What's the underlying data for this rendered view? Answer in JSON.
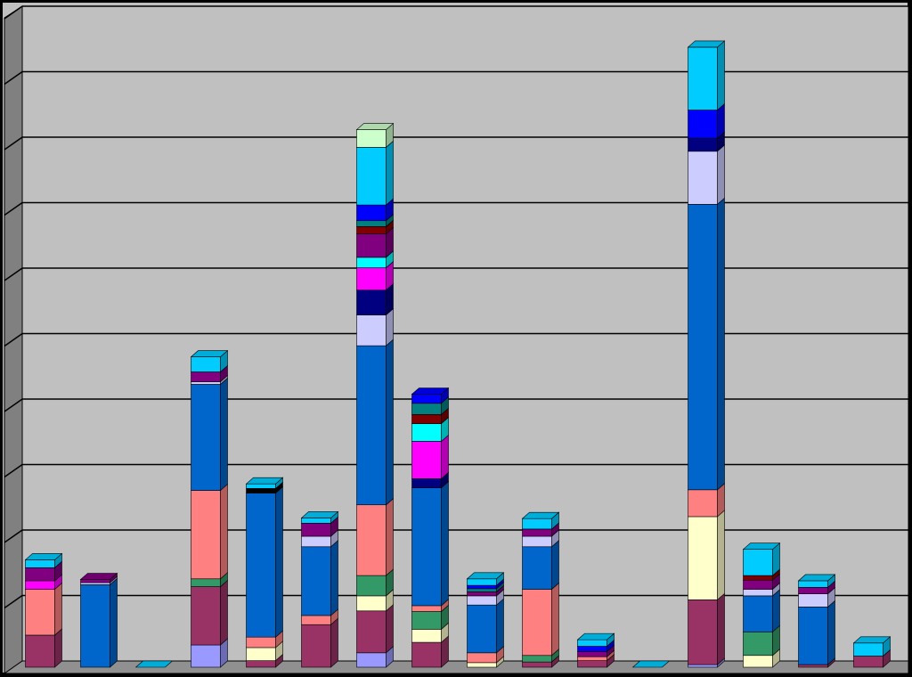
{
  "chart_data": {
    "type": "stacked-bar-3d",
    "categories": [
      null,
      null,
      null,
      null,
      null,
      null,
      null,
      null,
      null,
      null,
      null,
      null,
      null,
      null,
      null,
      null
    ],
    "ylim": [
      0,
      10
    ],
    "yticks": [
      0,
      1,
      2,
      3,
      4,
      5,
      6,
      7,
      8,
      9,
      10
    ],
    "grid": true,
    "series": [
      {
        "color": "#9999ff",
        "values": [
          0,
          0,
          0,
          0.34,
          0,
          0,
          0.22,
          0,
          0,
          0,
          0,
          0,
          0.04,
          0,
          0,
          0
        ]
      },
      {
        "color": "#993366",
        "values": [
          0.49,
          0,
          0,
          0.89,
          0.1,
          0.65,
          0.64,
          0.38,
          0,
          0.08,
          0.1,
          0,
          0.99,
          0,
          0.04,
          0.17
        ]
      },
      {
        "color": "#ffffcc",
        "values": [
          0,
          0,
          0,
          0,
          0.2,
          0,
          0.23,
          0.2,
          0.07,
          0,
          0,
          0,
          1.27,
          0.18,
          0,
          0
        ]
      },
      {
        "color": "#339966",
        "values": [
          0,
          0,
          0,
          0.12,
          0,
          0,
          0.31,
          0.27,
          0,
          0.1,
          0,
          0,
          0,
          0.36,
          0,
          0
        ]
      },
      {
        "color": "#ff8080",
        "values": [
          0.7,
          0,
          0,
          1.35,
          0.16,
          0.14,
          1.08,
          0.09,
          0.15,
          1.01,
          0.06,
          0,
          0.41,
          0,
          0,
          0
        ]
      },
      {
        "color": "#0066cc",
        "values": [
          0,
          1.26,
          0,
          1.62,
          2.2,
          1.05,
          2.43,
          1.8,
          0.73,
          0.65,
          0,
          0,
          4.36,
          0.55,
          0.88,
          0
        ]
      },
      {
        "color": "#ccccff",
        "values": [
          0,
          0.03,
          0,
          0.04,
          0,
          0.16,
          0.47,
          0,
          0.14,
          0.16,
          0,
          0,
          0.81,
          0.1,
          0.2,
          0
        ]
      },
      {
        "color": "#000080",
        "values": [
          0,
          0,
          0,
          0,
          0,
          0,
          0.38,
          0.14,
          0,
          0,
          0,
          0,
          0.2,
          0,
          0,
          0
        ]
      },
      {
        "color": "#ff00ff",
        "values": [
          0.13,
          0,
          0,
          0,
          0,
          0,
          0.34,
          0.57,
          0,
          0,
          0,
          0,
          0,
          0,
          0,
          0
        ]
      },
      {
        "color": "#00ffff",
        "values": [
          0,
          0,
          0,
          0,
          0,
          0,
          0.16,
          0.27,
          0,
          0,
          0,
          0,
          0,
          0,
          0,
          0
        ]
      },
      {
        "color": "#800080",
        "values": [
          0.2,
          0.05,
          0,
          0.15,
          0,
          0.2,
          0.36,
          0,
          0.06,
          0.11,
          0.08,
          0,
          0,
          0.14,
          0.1,
          0
        ]
      },
      {
        "color": "#000000",
        "values": [
          0,
          0,
          0,
          0,
          0.07,
          0,
          0,
          0,
          0,
          0,
          0,
          0,
          0,
          0,
          0,
          0
        ]
      },
      {
        "color": "#800000",
        "values": [
          0,
          0,
          0,
          0,
          0,
          0,
          0.11,
          0.14,
          0,
          0,
          0,
          0,
          0,
          0.07,
          0,
          0
        ]
      },
      {
        "color": "#008080",
        "values": [
          0,
          0,
          0,
          0,
          0,
          0,
          0.09,
          0.17,
          0.05,
          0,
          0,
          0,
          0,
          0,
          0,
          0
        ]
      },
      {
        "color": "#0000ff",
        "values": [
          0,
          0,
          0,
          0,
          0,
          0,
          0.24,
          0.14,
          0.05,
          0,
          0.08,
          0,
          0.43,
          0,
          0,
          0
        ]
      },
      {
        "color": "#00ccff",
        "values": [
          0.12,
          0,
          0,
          0.23,
          0.07,
          0.08,
          0.88,
          0,
          0.1,
          0.16,
          0.1,
          0,
          0.96,
          0.4,
          0.1,
          0.2
        ]
      },
      {
        "color": "#ccffcc",
        "values": [
          0,
          0,
          0,
          0,
          0,
          0,
          0.27,
          0,
          0,
          0,
          0,
          0,
          0,
          0,
          0,
          0
        ]
      }
    ]
  }
}
